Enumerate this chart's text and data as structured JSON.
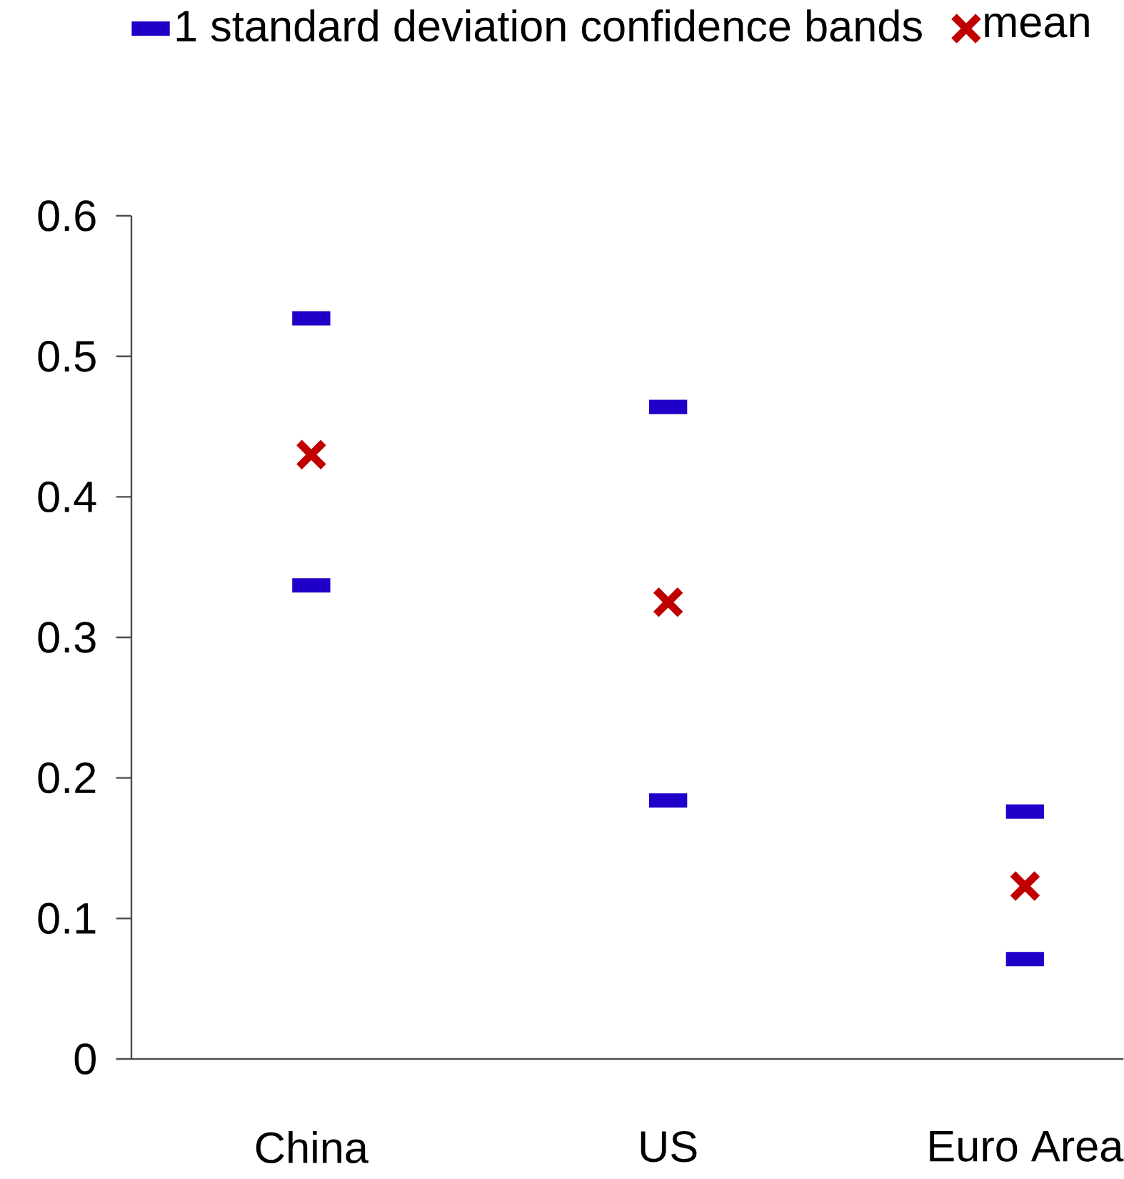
{
  "chart_data": {
    "type": "scatter",
    "categories": [
      "China",
      "US",
      "Euro Area"
    ],
    "series": [
      {
        "name": "1 standard deviation confidence bands",
        "color": "#1f00c8",
        "values": [
          0.527,
          0.464,
          0.176
        ]
      },
      {
        "color": "#1f00c8",
        "values": [
          0.337,
          0.184,
          0.071
        ]
      },
      {
        "name": "mean",
        "color": "#c00000",
        "marker": "cross",
        "values": [
          0.43,
          0.325,
          0.123
        ]
      }
    ],
    "ylim": [
      0,
      0.6
    ],
    "yticks": [
      0,
      0.1,
      0.2,
      0.3,
      0.4,
      0.5,
      0.6
    ],
    "legend": "top"
  }
}
